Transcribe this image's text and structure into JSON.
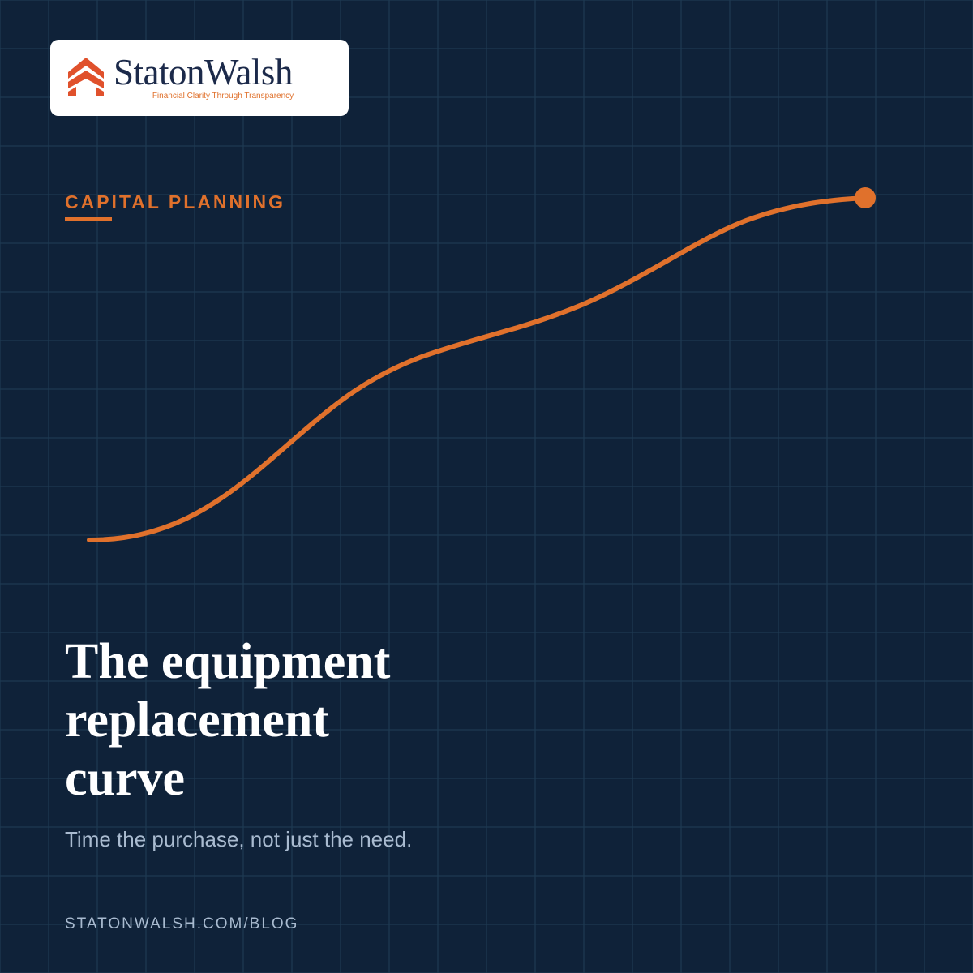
{
  "logo": {
    "name": "StatonWalsh",
    "tagline": "Financial Clarity Through Transparency"
  },
  "kicker": "CAPITAL PLANNING",
  "title": "The equipment replacement curve",
  "subtitle": "Time the purchase, not just the need.",
  "url": "STATONWALSH.COM/BLOG"
}
